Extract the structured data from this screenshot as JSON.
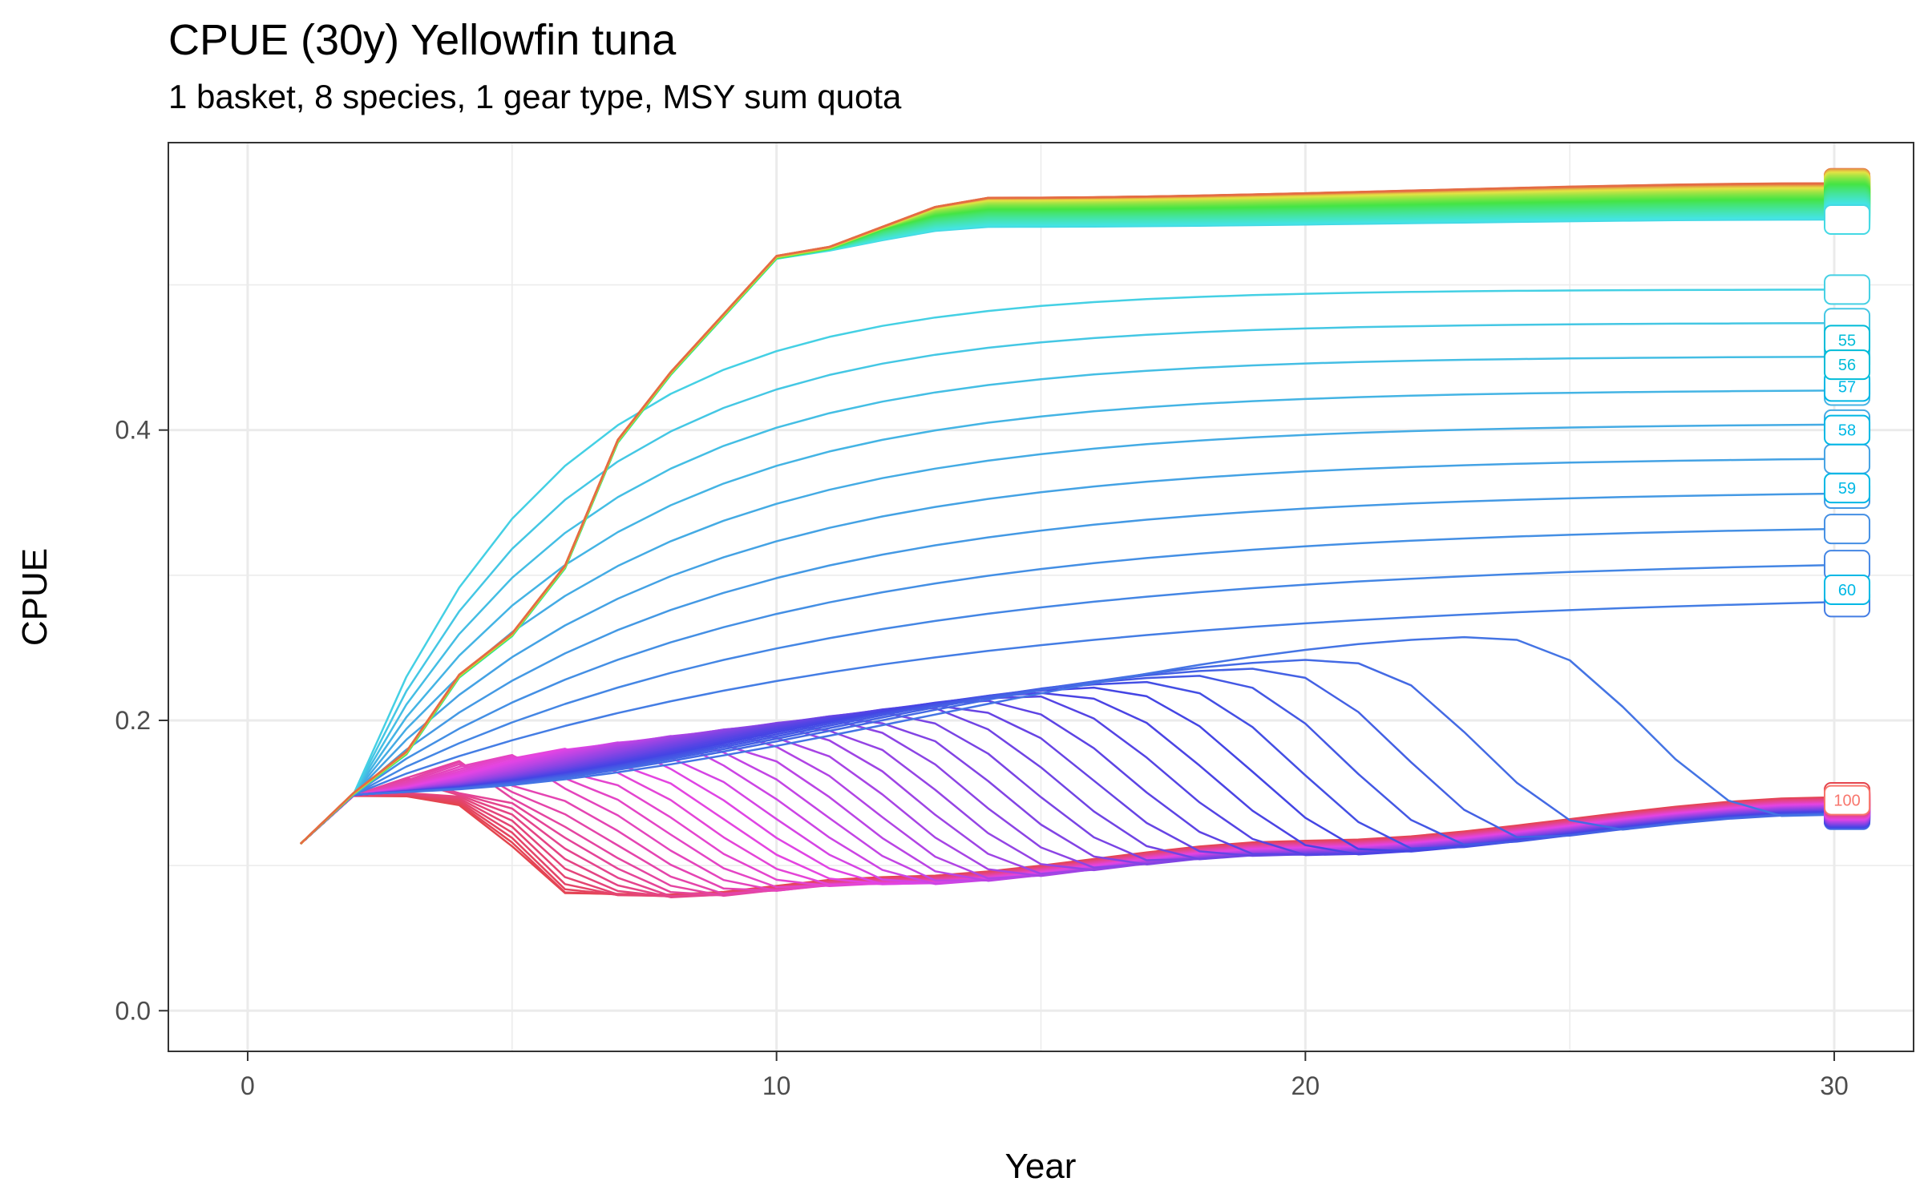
{
  "chart_data": {
    "type": "line",
    "title": "CPUE (30y) Yellowfin tuna",
    "subtitle": "1 basket, 8 species, 1 gear type, MSY sum quota",
    "xlabel": "Year",
    "ylabel": "CPUE",
    "xlim": [
      -1.5,
      31.5
    ],
    "ylim": [
      -0.028,
      0.598
    ],
    "x_ticks": [
      0,
      10,
      20,
      30
    ],
    "x_tick_labels": [
      "0",
      "10",
      "20",
      "30"
    ],
    "y_ticks": [
      0.0,
      0.2,
      0.4
    ],
    "y_tick_labels": [
      "0.0",
      "0.2",
      "0.4"
    ],
    "grid": true,
    "legend": "none",
    "years": [
      1,
      30
    ],
    "series_count": 100,
    "visible_end_labels": [
      "55",
      "56",
      "57",
      "58",
      "59",
      "60",
      "100"
    ],
    "series_highlights": [
      {
        "label": "57",
        "final_value": 0.43
      },
      {
        "label": "58",
        "final_value": 0.4
      },
      {
        "label": "59",
        "final_value": 0.36
      },
      {
        "label": "60",
        "final_value": 0.29
      },
      {
        "label": "100",
        "final_value": 0.145
      }
    ],
    "upper_envelope": {
      "values": [
        [
          1,
          0.115
        ],
        [
          2,
          0.15
        ],
        [
          5,
          0.26
        ],
        [
          8,
          0.44
        ],
        [
          10,
          0.52
        ],
        [
          14,
          0.56
        ],
        [
          30,
          0.57
        ]
      ]
    },
    "lower_envelope": {
      "values": [
        [
          1,
          0.115
        ],
        [
          2,
          0.148
        ],
        [
          4,
          0.135
        ],
        [
          6,
          0.079
        ],
        [
          8,
          0.078
        ],
        [
          12,
          0.09
        ],
        [
          20,
          0.115
        ],
        [
          30,
          0.145
        ]
      ]
    },
    "colors": {
      "palette_order": [
        "#F8766D",
        "#E58700",
        "#C99800",
        "#A3A500",
        "#6BB100",
        "#00BA38",
        "#00BF7D",
        "#00C0AF",
        "#00BCD8",
        "#00B0F6",
        "#619CFF",
        "#B983FF",
        "#E76BF3",
        "#FD61D1",
        "#FF67A4"
      ],
      "grid": "#ebebeb",
      "axis": "#333333"
    }
  }
}
